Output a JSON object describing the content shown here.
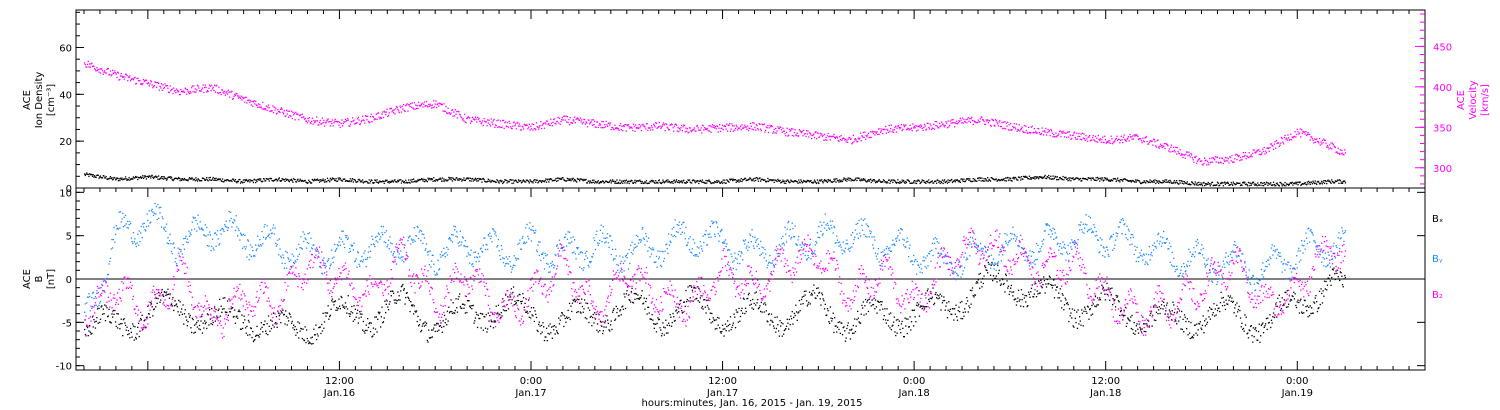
{
  "colors": {
    "black": "#000000",
    "magenta": "#ff00ff",
    "blue": "#1a8cff"
  },
  "x_axis": {
    "title": "hours:minutes, Jan. 16, 2015 - Jan. 19, 2015",
    "range_hours": [
      -4.5,
      80.0
    ],
    "ticks": [
      {
        "hours": 12,
        "time": "12:00",
        "date": "Jan.16"
      },
      {
        "hours": 24,
        "time": "0:00",
        "date": "Jan.17"
      },
      {
        "hours": 36,
        "time": "12:00",
        "date": "Jan.17"
      },
      {
        "hours": 48,
        "time": "0:00",
        "date": "Jan.18"
      },
      {
        "hours": 60,
        "time": "12:00",
        "date": "Jan.18"
      },
      {
        "hours": 72,
        "time": "0:00",
        "date": "Jan.19"
      }
    ]
  },
  "chart_data": [
    {
      "type": "scatter",
      "ylabel_left": [
        "ACE",
        "Ion Density",
        "[cm⁻³]"
      ],
      "ylabel_right": [
        "ACE",
        "Velocity",
        "[km/s]"
      ],
      "ylim_left": [
        0,
        76
      ],
      "ylim_right": [
        275,
        495
      ],
      "yticks_left": [
        0,
        20,
        40,
        60
      ],
      "yticks_right": [
        300,
        350,
        400,
        450
      ],
      "series": [
        {
          "axis": "left",
          "color": "#000000",
          "x": [
            -4,
            -2,
            0,
            2,
            4,
            6,
            8,
            10,
            12,
            14,
            16,
            18,
            20,
            22,
            24,
            26,
            28,
            30,
            32,
            34,
            36,
            38,
            40,
            42,
            44,
            46,
            48,
            50,
            52,
            54,
            56,
            58,
            60,
            62,
            64,
            66,
            68,
            70,
            72,
            74,
            75
          ],
          "values": [
            6,
            4,
            5,
            4,
            4,
            3,
            4,
            3,
            4,
            3,
            3,
            4,
            4,
            3,
            3,
            4,
            3,
            3,
            3,
            3,
            3,
            4,
            3,
            3,
            4,
            3,
            3,
            3,
            4,
            4,
            5,
            4,
            4,
            3,
            3,
            2,
            2,
            2,
            2,
            3,
            3
          ]
        },
        {
          "axis": "right",
          "color": "#ff00ff",
          "x": [
            -4,
            -2,
            0,
            2,
            4,
            6,
            8,
            10,
            12,
            14,
            16,
            18,
            20,
            22,
            24,
            26,
            28,
            30,
            32,
            34,
            36,
            38,
            40,
            42,
            44,
            46,
            48,
            50,
            52,
            54,
            56,
            58,
            60,
            62,
            64,
            66,
            68,
            70,
            72,
            74,
            75
          ],
          "values": [
            430,
            415,
            405,
            395,
            400,
            385,
            372,
            360,
            355,
            362,
            375,
            380,
            360,
            355,
            350,
            360,
            355,
            350,
            352,
            348,
            350,
            352,
            345,
            340,
            335,
            348,
            350,
            355,
            360,
            352,
            345,
            340,
            335,
            338,
            325,
            308,
            312,
            322,
            345,
            328,
            318
          ]
        }
      ]
    },
    {
      "type": "scatter",
      "ylabel_left": [
        "ACE",
        "B",
        "[nT]"
      ],
      "ylim": [
        -10.5,
        10.5
      ],
      "yticks": [
        -10,
        -5,
        0,
        5,
        10
      ],
      "zero_line": true,
      "legend": [
        "Bₓ",
        "Bᵧ",
        "B₂"
      ],
      "series": [
        {
          "name": "Bₓ",
          "color": "#000000",
          "x": [
            -4,
            -2,
            0,
            2,
            4,
            6,
            8,
            10,
            12,
            14,
            16,
            18,
            20,
            22,
            24,
            26,
            28,
            30,
            32,
            34,
            36,
            38,
            40,
            42,
            44,
            46,
            48,
            50,
            52,
            54,
            56,
            58,
            60,
            62,
            64,
            66,
            68,
            70,
            72,
            74,
            75
          ],
          "values": [
            -6,
            -5,
            -4,
            -3,
            -5,
            -4,
            -6,
            -5,
            -4,
            -4,
            -3,
            -5,
            -4,
            -3,
            -4,
            -5,
            -4,
            -3,
            -4,
            -3,
            -4,
            -4,
            -4,
            -3,
            -5,
            -4,
            -4,
            -3,
            -1,
            0,
            -2,
            -3,
            -3,
            -4,
            -5,
            -4,
            -4,
            -5,
            -3,
            0,
            -2
          ]
        },
        {
          "name": "Bᵧ",
          "color": "#1a8cff",
          "x": [
            -4,
            -2,
            0,
            2,
            4,
            6,
            8,
            10,
            12,
            14,
            16,
            18,
            20,
            22,
            24,
            26,
            28,
            30,
            32,
            34,
            36,
            38,
            40,
            42,
            44,
            46,
            48,
            50,
            52,
            54,
            56,
            58,
            60,
            62,
            64,
            66,
            68,
            70,
            72,
            74,
            75
          ],
          "values": [
            -5,
            5,
            7,
            4,
            6,
            5,
            4,
            3,
            3,
            4,
            4,
            3,
            4,
            3,
            4,
            3,
            4,
            3,
            4,
            5,
            4,
            3,
            4,
            5,
            5,
            4,
            3,
            2,
            3,
            4,
            4,
            5,
            5,
            4,
            3,
            2,
            2,
            1,
            3,
            4,
            4
          ]
        },
        {
          "name": "B₂",
          "color": "#ff00ff",
          "x": [
            -4,
            -2,
            0,
            2,
            4,
            6,
            8,
            10,
            12,
            14,
            16,
            18,
            20,
            22,
            24,
            26,
            28,
            30,
            32,
            34,
            36,
            38,
            40,
            42,
            44,
            46,
            48,
            50,
            52,
            54,
            56,
            58,
            60,
            62,
            64,
            66,
            68,
            70,
            72,
            74,
            75
          ],
          "values": [
            -4,
            -1,
            -4,
            1,
            -5,
            -2,
            -3,
            2,
            0,
            -2,
            3,
            -3,
            1,
            -4,
            -2,
            2,
            -4,
            1,
            -2,
            -3,
            1,
            -1,
            2,
            3,
            -2,
            1,
            -3,
            2,
            4,
            3,
            1,
            2,
            -2,
            -4,
            -3,
            -1,
            2,
            -3,
            -1,
            4,
            2
          ]
        }
      ]
    }
  ]
}
